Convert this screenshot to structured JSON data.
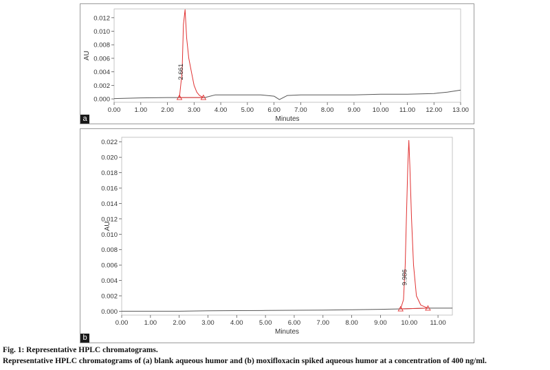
{
  "caption": {
    "title": "Fig. 1: Representative HPLC chromatograms.",
    "text": "Representative HPLC chromatograms of (a) blank aqueous humor and (b) moxifloxacin spiked aqueous humor at a concentration of 400 ng/ml."
  },
  "chart_data": [
    {
      "type": "line",
      "panel_label": "a",
      "xlabel": "Minutes",
      "ylabel": "AU",
      "xlim": [
        0,
        13
      ],
      "ylim": [
        -0.0005,
        0.0133
      ],
      "x_ticks": [
        0,
        1,
        2,
        3,
        4,
        5,
        6,
        7,
        8,
        9,
        10,
        11,
        12,
        13
      ],
      "x_tick_labels": [
        "0.00",
        "1.00",
        "2.00",
        "3.00",
        "4.00",
        "5.00",
        "6.00",
        "7.00",
        "8.00",
        "9.00",
        "10.00",
        "11.00",
        "12.00",
        "13.00"
      ],
      "y_ticks": [
        0,
        0.002,
        0.004,
        0.006,
        0.008,
        0.01,
        0.012
      ],
      "y_tick_labels": [
        "0.000",
        "0.002",
        "0.004",
        "0.006",
        "0.008",
        "0.010",
        "0.012"
      ],
      "grid": false,
      "series": [
        {
          "color": "#555555",
          "x": [
            0,
            1,
            2,
            2.4,
            3.4,
            3.8,
            4.5,
            5,
            5.5,
            6,
            6.2,
            6.5,
            7,
            8,
            9,
            10,
            11,
            12,
            12.5,
            13
          ],
          "y": [
            5e-05,
            0.00015,
            0.0002,
            0.0002,
            0.0002,
            0.0006,
            0.0006,
            0.0006,
            0.0006,
            0.0004,
            -0.0001,
            0.0005,
            0.0006,
            0.0006,
            0.0006,
            0.0007,
            0.0007,
            0.0008,
            0.001,
            0.0013
          ]
        },
        {
          "color": "#e03030",
          "x": [
            2.45,
            2.55,
            2.6,
            2.661,
            2.72,
            2.8,
            2.9,
            3.0,
            3.1,
            3.2,
            3.35
          ],
          "y": [
            0.0002,
            0.004,
            0.011,
            0.0132,
            0.009,
            0.006,
            0.004,
            0.002,
            0.001,
            0.0005,
            0.0002
          ]
        },
        {
          "color": "#e03030",
          "x": [
            2.45,
            3.35
          ],
          "y": [
            0.0002,
            0.0002
          ]
        }
      ],
      "annotations": [
        {
          "text": "2.661",
          "x": 2.661,
          "y": 0.004
        }
      ],
      "peak_markers": [
        {
          "x": 2.45,
          "y": 0.0002
        },
        {
          "x": 3.35,
          "y": 0.0002
        }
      ]
    },
    {
      "type": "line",
      "panel_label": "b",
      "xlabel": "Minutes",
      "ylabel": "AU",
      "xlim": [
        0,
        11.5
      ],
      "ylim": [
        -0.0005,
        0.0226
      ],
      "x_ticks": [
        0,
        1,
        2,
        3,
        4,
        5,
        6,
        7,
        8,
        9,
        10,
        11
      ],
      "x_tick_labels": [
        "0.00",
        "1.00",
        "2.00",
        "3.00",
        "4.00",
        "5.00",
        "6.00",
        "7.00",
        "8.00",
        "9.00",
        "10.00",
        "11.00"
      ],
      "y_ticks": [
        0,
        0.002,
        0.004,
        0.006,
        0.008,
        0.01,
        0.012,
        0.014,
        0.016,
        0.018,
        0.02,
        0.022
      ],
      "y_tick_labels": [
        "0.000",
        "0.002",
        "0.004",
        "0.006",
        "0.008",
        "0.010",
        "0.012",
        "0.014",
        "0.016",
        "0.018",
        "0.020",
        "0.022"
      ],
      "grid": false,
      "series": [
        {
          "color": "#555555",
          "x": [
            0,
            1,
            2,
            3,
            4,
            5,
            6,
            7,
            8,
            9,
            9.7,
            10.65,
            11,
            11.5
          ],
          "y": [
            0,
            0,
            0,
            5e-05,
            8e-05,
            0.0001,
            0.00012,
            0.00015,
            0.0002,
            0.00025,
            0.0003,
            0.0004,
            0.0004,
            0.0004
          ]
        },
        {
          "color": "#e03030",
          "x": [
            9.7,
            9.8,
            9.86,
            9.9,
            9.95,
            9.986,
            10.02,
            10.08,
            10.15,
            10.25,
            10.4,
            10.65
          ],
          "y": [
            0.0003,
            0.0015,
            0.006,
            0.012,
            0.019,
            0.0222,
            0.019,
            0.012,
            0.006,
            0.002,
            0.0008,
            0.0004
          ]
        },
        {
          "color": "#e03030",
          "x": [
            9.7,
            10.65
          ],
          "y": [
            0.0003,
            0.0004
          ]
        }
      ],
      "annotations": [
        {
          "text": "9.986",
          "x": 9.986,
          "y": 0.0044
        }
      ],
      "peak_markers": [
        {
          "x": 9.7,
          "y": 0.0003
        },
        {
          "x": 10.65,
          "y": 0.0004
        }
      ]
    }
  ]
}
